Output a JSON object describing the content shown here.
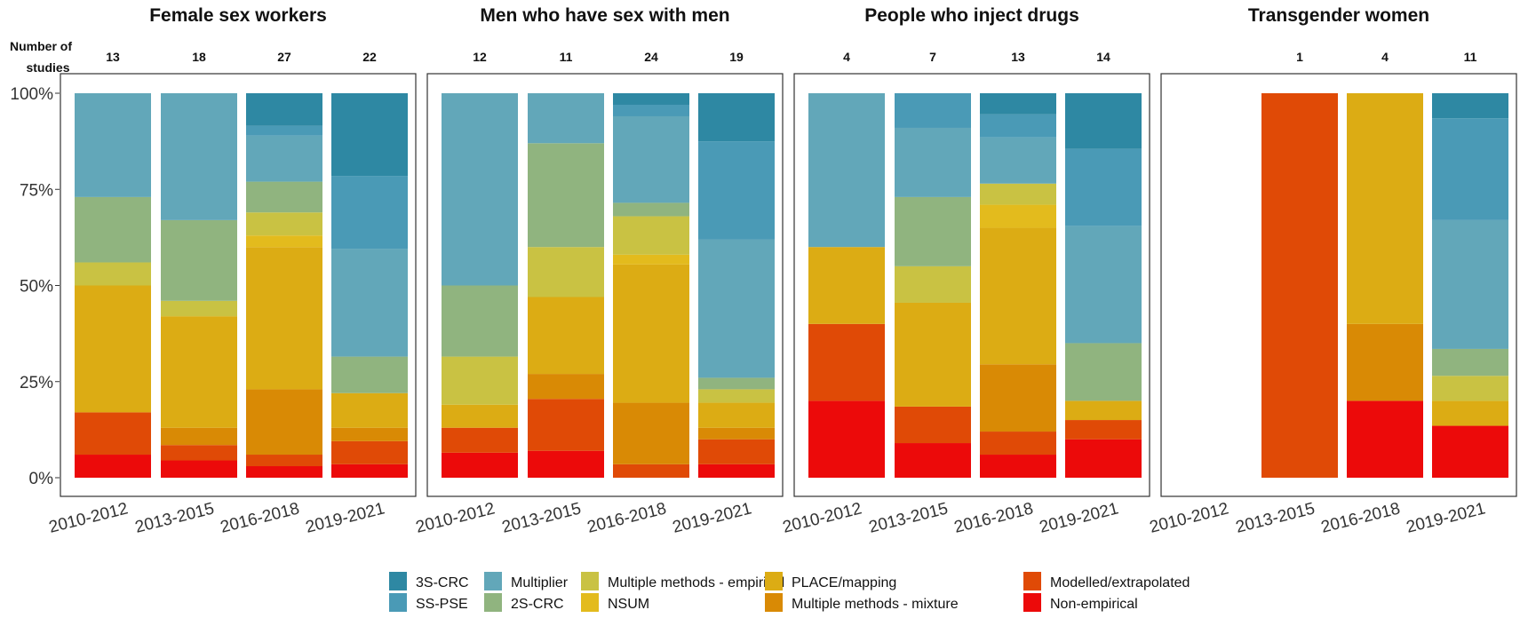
{
  "chart_data": {
    "type": "bar",
    "stacked": true,
    "normalized": true,
    "count_header": "Number of studies",
    "categories": [
      "2010-2012",
      "2013-2015",
      "2016-2018",
      "2019-2021"
    ],
    "y_ticks": [
      "0%",
      "25%",
      "50%",
      "75%",
      "100%"
    ],
    "ylim": [
      0,
      100
    ],
    "legend_position": "bottom",
    "methods": [
      {
        "name": "3S-CRC",
        "color": "#2e88a3"
      },
      {
        "name": "SS-PSE",
        "color": "#4a9ab6"
      },
      {
        "name": "Multiplier",
        "color": "#62a7b9"
      },
      {
        "name": "2S-CRC",
        "color": "#90b47f"
      },
      {
        "name": "Multiple methods - empirical",
        "color": "#c9c243"
      },
      {
        "name": "NSUM",
        "color": "#e3bb1d"
      },
      {
        "name": "PLACE/mapping",
        "color": "#dcac14"
      },
      {
        "name": "Multiple methods - mixture",
        "color": "#d98a05"
      },
      {
        "name": "Modelled/extrapolated",
        "color": "#e04a06"
      },
      {
        "name": "Non-empirical",
        "color": "#ec0a0a"
      }
    ],
    "legend_order": [
      [
        "3S-CRC",
        "SS-PSE"
      ],
      [
        "Multiplier",
        "2S-CRC"
      ],
      [
        "Multiple methods - empirical",
        "NSUM"
      ],
      [
        "PLACE/mapping",
        "Multiple methods - mixture"
      ],
      [
        "Modelled/extrapolated",
        "Non-empirical"
      ]
    ],
    "facets": [
      {
        "title": "Female sex workers",
        "counts": [
          "13",
          "18",
          "27",
          "22"
        ],
        "bars": [
          {
            "period": "2010-2012",
            "segments": {
              "Non-empirical": 6,
              "Modelled/extrapolated": 11,
              "PLACE/mapping": 33,
              "Multiple methods - empirical": 6,
              "2S-CRC": 17,
              "Multiplier": 27
            }
          },
          {
            "period": "2013-2015",
            "segments": {
              "Non-empirical": 4.5,
              "Modelled/extrapolated": 4,
              "Multiple methods - mixture": 4.5,
              "PLACE/mapping": 29,
              "Multiple methods - empirical": 4,
              "2S-CRC": 21,
              "Multiplier": 33
            }
          },
          {
            "period": "2016-2018",
            "segments": {
              "Non-empirical": 3,
              "Modelled/extrapolated": 3,
              "Multiple methods - mixture": 17,
              "PLACE/mapping": 37,
              "NSUM": 3,
              "Multiple methods - empirical": 6,
              "2S-CRC": 8,
              "Multiplier": 12,
              "SS-PSE": 2.5,
              "3S-CRC": 8.5
            }
          },
          {
            "period": "2019-2021",
            "segments": {
              "Non-empirical": 3.5,
              "Modelled/extrapolated": 6,
              "Multiple methods - mixture": 3.5,
              "PLACE/mapping": 9,
              "2S-CRC": 9.5,
              "Multiplier": 28,
              "SS-PSE": 19,
              "3S-CRC": 21.5
            }
          }
        ]
      },
      {
        "title": "Men who have sex with men",
        "counts": [
          "12",
          "11",
          "24",
          "19"
        ],
        "bars": [
          {
            "period": "2010-2012",
            "segments": {
              "Non-empirical": 6.5,
              "Modelled/extrapolated": 6.5,
              "PLACE/mapping": 6,
              "Multiple methods - empirical": 12.5,
              "2S-CRC": 18.5,
              "Multiplier": 50
            }
          },
          {
            "period": "2013-2015",
            "segments": {
              "Non-empirical": 7,
              "Modelled/extrapolated": 13.5,
              "Multiple methods - mixture": 6.5,
              "PLACE/mapping": 20,
              "Multiple methods - empirical": 13,
              "2S-CRC": 27,
              "Multiplier": 13
            }
          },
          {
            "period": "2016-2018",
            "segments": {
              "Modelled/extrapolated": 3.5,
              "Multiple methods - mixture": 16,
              "PLACE/mapping": 36,
              "NSUM": 2.5,
              "Multiple methods - empirical": 10,
              "2S-CRC": 3.5,
              "Multiplier": 22.5,
              "SS-PSE": 3,
              "3S-CRC": 3
            }
          },
          {
            "period": "2019-2021",
            "segments": {
              "Non-empirical": 3.5,
              "Modelled/extrapolated": 6.5,
              "Multiple methods - mixture": 3,
              "PLACE/mapping": 6.5,
              "Multiple methods - empirical": 3.5,
              "2S-CRC": 3,
              "Multiplier": 36,
              "SS-PSE": 25.5,
              "3S-CRC": 12.5
            }
          }
        ]
      },
      {
        "title": "People who inject drugs",
        "counts": [
          "4",
          "7",
          "13",
          "14"
        ],
        "bars": [
          {
            "period": "2010-2012",
            "segments": {
              "Non-empirical": 20,
              "Modelled/extrapolated": 20,
              "PLACE/mapping": 20,
              "Multiplier": 40
            }
          },
          {
            "period": "2013-2015",
            "segments": {
              "Non-empirical": 9,
              "Modelled/extrapolated": 9.5,
              "PLACE/mapping": 27,
              "Multiple methods - empirical": 9.5,
              "2S-CRC": 18,
              "Multiplier": 18,
              "SS-PSE": 9
            }
          },
          {
            "period": "2016-2018",
            "segments": {
              "Non-empirical": 6,
              "Modelled/extrapolated": 6,
              "Multiple methods - mixture": 17.5,
              "PLACE/mapping": 35.5,
              "NSUM": 6,
              "Multiple methods - empirical": 5.5,
              "Multiplier": 12,
              "SS-PSE": 6,
              "3S-CRC": 5.5
            }
          },
          {
            "period": "2019-2021",
            "segments": {
              "Non-empirical": 10,
              "Modelled/extrapolated": 5,
              "PLACE/mapping": 5,
              "2S-CRC": 15,
              "Multiplier": 30.5,
              "SS-PSE": 20,
              "3S-CRC": 14.5
            }
          }
        ]
      },
      {
        "title": "Transgender women",
        "counts": [
          "",
          "1",
          "4",
          "11"
        ],
        "bars": [
          {
            "period": "2010-2012",
            "segments": {}
          },
          {
            "period": "2013-2015",
            "segments": {
              "Modelled/extrapolated": 100
            }
          },
          {
            "period": "2016-2018",
            "segments": {
              "Non-empirical": 20,
              "Multiple methods - mixture": 20,
              "PLACE/mapping": 60
            }
          },
          {
            "period": "2019-2021",
            "segments": {
              "Non-empirical": 13.5,
              "PLACE/mapping": 6.5,
              "Multiple methods - empirical": 6.5,
              "2S-CRC": 7,
              "Multiplier": 33.5,
              "SS-PSE": 26.5,
              "3S-CRC": 6.5
            }
          }
        ]
      }
    ]
  }
}
